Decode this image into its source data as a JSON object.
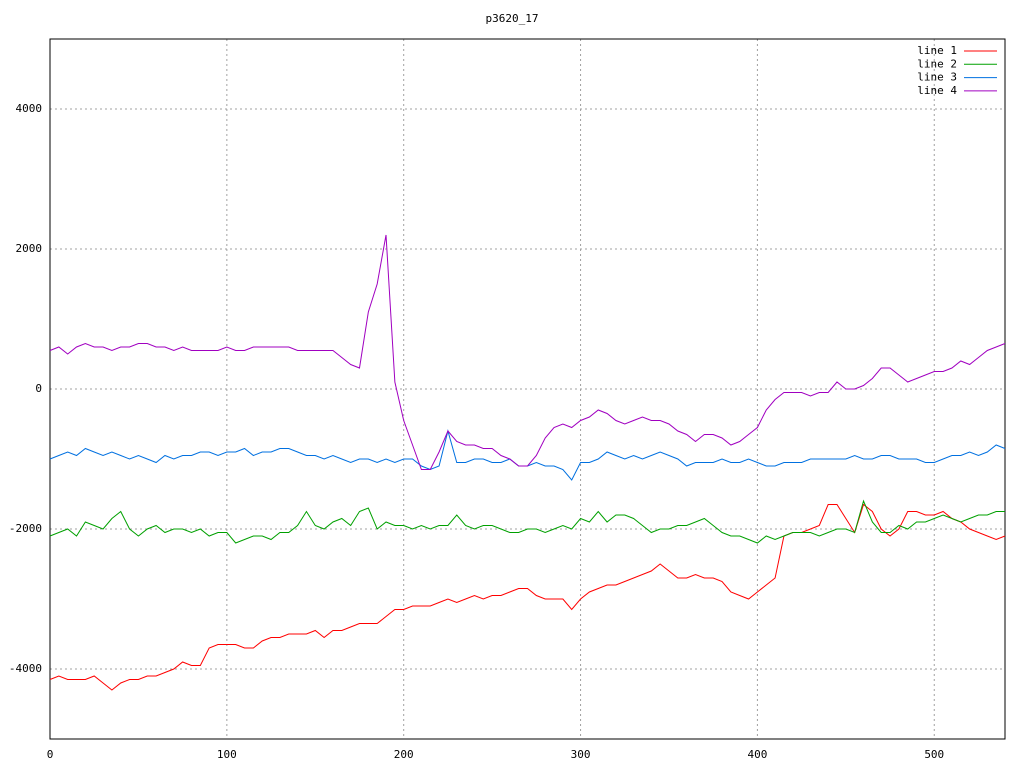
{
  "chart_data": {
    "type": "line",
    "title": "p3620_17",
    "x": [
      0,
      5,
      10,
      15,
      20,
      25,
      30,
      35,
      40,
      45,
      50,
      55,
      60,
      65,
      70,
      75,
      80,
      85,
      90,
      95,
      100,
      105,
      110,
      115,
      120,
      125,
      130,
      135,
      140,
      145,
      150,
      155,
      160,
      165,
      170,
      175,
      180,
      185,
      190,
      195,
      200,
      205,
      210,
      215,
      220,
      225,
      230,
      235,
      240,
      245,
      250,
      255,
      260,
      265,
      270,
      275,
      280,
      285,
      290,
      295,
      300,
      305,
      310,
      315,
      320,
      325,
      330,
      335,
      340,
      345,
      350,
      355,
      360,
      365,
      370,
      375,
      380,
      385,
      390,
      395,
      400,
      405,
      410,
      415,
      420,
      425,
      430,
      435,
      440,
      445,
      450,
      455,
      460,
      465,
      470,
      475,
      480,
      485,
      490,
      495,
      500,
      505,
      510,
      515,
      520,
      525,
      530,
      535,
      540
    ],
    "series": [
      {
        "name": "line 1",
        "color": "#ff0000",
        "values": [
          -4150,
          -4100,
          -4150,
          -4150,
          -4150,
          -4100,
          -4200,
          -4300,
          -4200,
          -4150,
          -4150,
          -4100,
          -4100,
          -4050,
          -4000,
          -3900,
          -3950,
          -3950,
          -3700,
          -3650,
          -3650,
          -3650,
          -3700,
          -3700,
          -3600,
          -3550,
          -3550,
          -3500,
          -3500,
          -3500,
          -3450,
          -3550,
          -3450,
          -3450,
          -3400,
          -3350,
          -3350,
          -3350,
          -3250,
          -3150,
          -3150,
          -3100,
          -3100,
          -3100,
          -3050,
          -3000,
          -3050,
          -3000,
          -2950,
          -3000,
          -2950,
          -2950,
          -2900,
          -2850,
          -2850,
          -2950,
          -3000,
          -3000,
          -3000,
          -3150,
          -3000,
          -2900,
          -2850,
          -2800,
          -2800,
          -2750,
          -2700,
          -2650,
          -2600,
          -2500,
          -2600,
          -2700,
          -2700,
          -2650,
          -2700,
          -2700,
          -2750,
          -2900,
          -2950,
          -3000,
          -2900,
          -2800,
          -2700,
          -2100,
          -2050,
          -2050,
          -2000,
          -1950,
          -1650,
          -1650,
          -1850,
          -2050,
          -1650,
          -1750,
          -2000,
          -2100,
          -2000,
          -1750,
          -1750,
          -1800,
          -1800,
          -1750,
          -1850,
          -1900,
          -2000,
          -2050,
          -2100,
          -2150,
          -2100
        ]
      },
      {
        "name": "line 2",
        "color": "#00a000",
        "values": [
          -2100,
          -2050,
          -2000,
          -2100,
          -1900,
          -1950,
          -2000,
          -1850,
          -1750,
          -2000,
          -2100,
          -2000,
          -1950,
          -2050,
          -2000,
          -2000,
          -2050,
          -2000,
          -2100,
          -2050,
          -2050,
          -2200,
          -2150,
          -2100,
          -2100,
          -2150,
          -2050,
          -2050,
          -1950,
          -1750,
          -1950,
          -2000,
          -1900,
          -1850,
          -1950,
          -1750,
          -1700,
          -2000,
          -1900,
          -1950,
          -1950,
          -2000,
          -1950,
          -2000,
          -1950,
          -1950,
          -1800,
          -1950,
          -2000,
          -1950,
          -1950,
          -2000,
          -2050,
          -2050,
          -2000,
          -2000,
          -2050,
          -2000,
          -1950,
          -2000,
          -1850,
          -1900,
          -1750,
          -1900,
          -1800,
          -1800,
          -1850,
          -1950,
          -2050,
          -2000,
          -2000,
          -1950,
          -1950,
          -1900,
          -1850,
          -1950,
          -2050,
          -2100,
          -2100,
          -2150,
          -2200,
          -2100,
          -2150,
          -2100,
          -2050,
          -2050,
          -2050,
          -2100,
          -2050,
          -2000,
          -2000,
          -2050,
          -1600,
          -1900,
          -2050,
          -2050,
          -1950,
          -2000,
          -1900,
          -1900,
          -1850,
          -1800,
          -1850,
          -1900,
          -1850,
          -1800,
          -1800,
          -1750,
          -1750
        ]
      },
      {
        "name": "line 3",
        "color": "#0070e0",
        "values": [
          -1000,
          -950,
          -900,
          -950,
          -850,
          -900,
          -950,
          -900,
          -950,
          -1000,
          -950,
          -1000,
          -1050,
          -950,
          -1000,
          -950,
          -950,
          -900,
          -900,
          -950,
          -900,
          -900,
          -850,
          -950,
          -900,
          -900,
          -850,
          -850,
          -900,
          -950,
          -950,
          -1000,
          -950,
          -1000,
          -1050,
          -1000,
          -1000,
          -1050,
          -1000,
          -1050,
          -1000,
          -1000,
          -1100,
          -1150,
          -1100,
          -600,
          -1050,
          -1050,
          -1000,
          -1000,
          -1050,
          -1050,
          -1000,
          -1100,
          -1100,
          -1050,
          -1100,
          -1100,
          -1150,
          -1300,
          -1050,
          -1050,
          -1000,
          -900,
          -950,
          -1000,
          -950,
          -1000,
          -950,
          -900,
          -950,
          -1000,
          -1100,
          -1050,
          -1050,
          -1050,
          -1000,
          -1050,
          -1050,
          -1000,
          -1050,
          -1100,
          -1100,
          -1050,
          -1050,
          -1050,
          -1000,
          -1000,
          -1000,
          -1000,
          -1000,
          -950,
          -1000,
          -1000,
          -950,
          -950,
          -1000,
          -1000,
          -1000,
          -1050,
          -1050,
          -1000,
          -950,
          -950,
          -900,
          -950,
          -900,
          -800,
          -850
        ]
      },
      {
        "name": "line 4",
        "color": "#a000c0",
        "values": [
          550,
          600,
          500,
          600,
          650,
          600,
          600,
          550,
          600,
          600,
          650,
          650,
          600,
          600,
          550,
          600,
          550,
          550,
          550,
          550,
          600,
          550,
          550,
          600,
          600,
          600,
          600,
          600,
          550,
          550,
          550,
          550,
          550,
          450,
          350,
          300,
          1100,
          1500,
          2200,
          100,
          -450,
          -800,
          -1150,
          -1150,
          -900,
          -600,
          -750,
          -800,
          -800,
          -850,
          -850,
          -950,
          -1000,
          -1100,
          -1100,
          -950,
          -700,
          -550,
          -500,
          -550,
          -450,
          -400,
          -300,
          -350,
          -450,
          -500,
          -450,
          -400,
          -450,
          -450,
          -500,
          -600,
          -650,
          -750,
          -650,
          -650,
          -700,
          -800,
          -750,
          -650,
          -550,
          -300,
          -150,
          -50,
          -50,
          -50,
          -100,
          -50,
          -50,
          100,
          0,
          0,
          50,
          150,
          300,
          300,
          200,
          100,
          150,
          200,
          250,
          250,
          300,
          400,
          350,
          450,
          550,
          600,
          650
        ]
      }
    ],
    "xlim": [
      0,
      540
    ],
    "ylim": [
      -5000,
      5000
    ],
    "xticks": [
      0,
      100,
      200,
      300,
      400,
      500
    ],
    "yticks": [
      -4000,
      -2000,
      0,
      2000,
      4000
    ],
    "grid": true,
    "legend": "top-right"
  }
}
